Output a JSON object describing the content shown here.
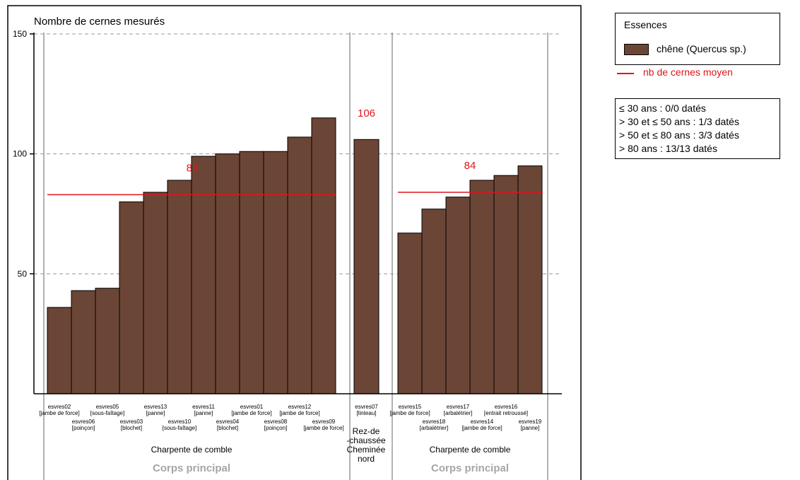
{
  "chart_data": {
    "type": "bar",
    "ylabel": "Nombre de cernes mesurés",
    "yticks": [
      "50",
      "100",
      "150"
    ],
    "ylim": [
      0,
      150
    ],
    "grid": true,
    "colors": {
      "bar": "#6b4636",
      "mean_line": "#e0141b"
    },
    "groups": [
      {
        "label": "Charpente de comble",
        "mean_label": "83",
        "mean": 83,
        "bars": [
          {
            "id": "esvres02",
            "role": "[jambe de force]",
            "value": 36
          },
          {
            "id": "esvres06",
            "role": "[poinçon]",
            "value": 43
          },
          {
            "id": "esvres05",
            "role": "[sous-faîtage]",
            "value": 44
          },
          {
            "id": "esvres03",
            "role": "[blochet]",
            "value": 80
          },
          {
            "id": "esvres13",
            "role": "[panne]",
            "value": 84
          },
          {
            "id": "esvres10",
            "role": "[sous-faîtage]",
            "value": 89
          },
          {
            "id": "esvres11",
            "role": "[panne]",
            "value": 99
          },
          {
            "id": "esvres04",
            "role": "[blochet]",
            "value": 100
          },
          {
            "id": "esvres01",
            "role": "[jambe de force]",
            "value": 101
          },
          {
            "id": "esvres08",
            "role": "[poinçon]",
            "value": 101
          },
          {
            "id": "esvres12",
            "role": "[jambe de force]",
            "value": 107
          },
          {
            "id": "esvres09",
            "role": "[jambe de force]",
            "value": 115
          }
        ]
      },
      {
        "label_lines": [
          "Rez-de",
          "-chaussée",
          "Cheminée",
          "nord"
        ],
        "mean_label": "106",
        "mean": 106,
        "bars": [
          {
            "id": "esvres07",
            "role": "[linteau]",
            "value": 106
          }
        ]
      },
      {
        "label": "Charpente de comble",
        "mean_label": "84",
        "mean": 84,
        "bars": [
          {
            "id": "esvres15",
            "role": "[jambe de force]",
            "value": 67
          },
          {
            "id": "esvres18",
            "role": "[arbalétrier]",
            "value": 77
          },
          {
            "id": "esvres17",
            "role": "[arbalétrier]",
            "value": 82
          },
          {
            "id": "esvres14",
            "role": "[jambe de force]",
            "value": 89
          },
          {
            "id": "esvres16",
            "role": "[entrait retroussé]",
            "value": 91
          },
          {
            "id": "esvres19",
            "role": "[panne]",
            "value": 95
          }
        ]
      }
    ],
    "sections": [
      "Corps principal",
      "Corps principal"
    ]
  },
  "legend": {
    "title": "Essences",
    "items": [
      {
        "label": "chêne (Quercus sp.)",
        "color": "#6b4636"
      }
    ],
    "mean_label": "nb de cernes moyen"
  },
  "stats": [
    "≤ 30 ans : 0/0 datés",
    "> 30 et ≤ 50 ans : 1/3 datés",
    "> 50 et ≤ 80 ans : 3/3 datés",
    "> 80 ans : 13/13 datés"
  ]
}
